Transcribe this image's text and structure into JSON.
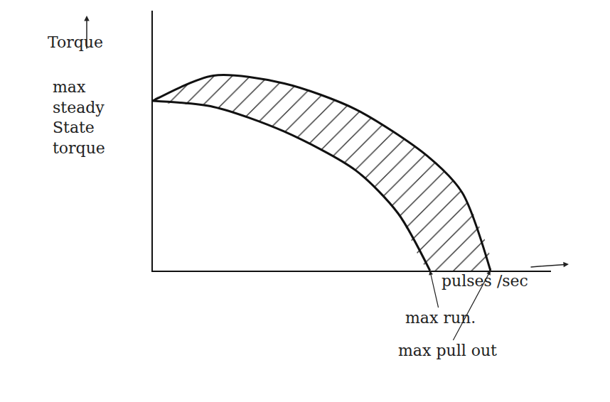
{
  "chart_data": {
    "type": "line",
    "y_label": "Torque",
    "y_sublabel": "max steady State torque",
    "x_label": "pulses /sec",
    "xlim": [
      0,
      100
    ],
    "ylim": [
      0,
      100
    ],
    "tick_labels": false,
    "grid": false,
    "series": [
      {
        "label": "max run.",
        "color": "#111111",
        "x": [
          0,
          15.2,
          33,
          51,
          61.6,
          69.6
        ],
        "values": [
          65.3,
          63,
          53.5,
          38.5,
          22,
          0
        ]
      },
      {
        "label": "max pull out",
        "color": "#111111",
        "x": [
          0,
          15.2,
          33,
          51,
          69,
          77.7,
          84.8
        ],
        "values": [
          65.3,
          75,
          72,
          62,
          44,
          30,
          0
        ]
      }
    ]
  }
}
